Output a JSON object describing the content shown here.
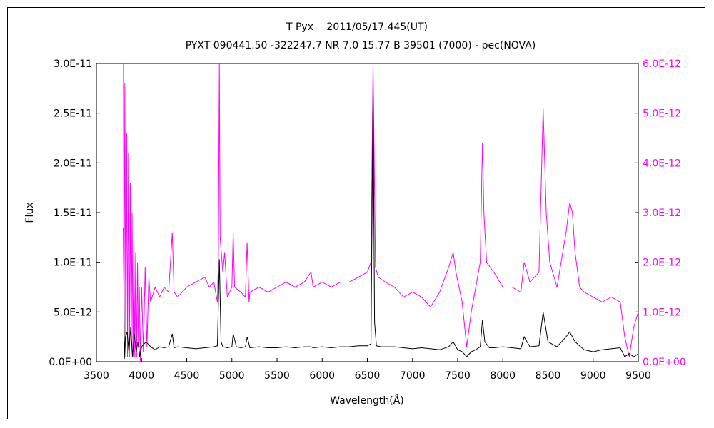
{
  "chart_data": {
    "type": "line",
    "title": "T Pyx　 2011/05/17.445(UT)",
    "subtitle": "PYXT 090441.50 -322247.7 NR 7.0 15.77 B 39501 (7000) - pec(NOVA)",
    "xlabel": "Wavelength(Å)",
    "ylabel": "Flux",
    "xlim": [
      3500,
      9500
    ],
    "ylim_left": [
      0,
      3e-11
    ],
    "ylim_right": [
      0,
      6e-12
    ],
    "x_ticks": [
      "3500",
      "4000",
      "4500",
      "5000",
      "5500",
      "6000",
      "6500",
      "7000",
      "7500",
      "8000",
      "8500",
      "9000",
      "9500"
    ],
    "y_ticks_left": [
      "0.0E+00",
      "5.0E-12",
      "1.0E-11",
      "1.5E-11",
      "2.0E-11",
      "2.5E-11",
      "3.0E-11"
    ],
    "y_ticks_right": [
      "0.0E+00",
      "1.0E-12",
      "2.0E-12",
      "3.0E-12",
      "4.0E-12",
      "5.0E-12",
      "6.0E-12"
    ],
    "grid": false,
    "legend": "none",
    "series": [
      {
        "axis": "left",
        "color": "#000000",
        "x": [
          3800,
          3810,
          3820,
          3840,
          3860,
          3880,
          3900,
          3920,
          3940,
          3960,
          3980,
          4000,
          4050,
          4100,
          4150,
          4200,
          4250,
          4300,
          4340,
          4360,
          4400,
          4500,
          4600,
          4700,
          4800,
          4840,
          4861,
          4880,
          4900,
          4950,
          5000,
          5015,
          5050,
          5100,
          5150,
          5170,
          5200,
          5300,
          5400,
          5500,
          5600,
          5700,
          5800,
          5876,
          5900,
          6000,
          6100,
          6200,
          6300,
          6400,
          6500,
          6540,
          6563,
          6580,
          6600,
          6650,
          6700,
          6800,
          6900,
          7000,
          7100,
          7200,
          7300,
          7400,
          7450,
          7500,
          7550,
          7600,
          7650,
          7700,
          7750,
          7774,
          7800,
          7850,
          7900,
          8000,
          8100,
          8200,
          8236,
          8300,
          8400,
          8446,
          8500,
          8600,
          8700,
          8740,
          8800,
          8900,
          9000,
          9100,
          9200,
          9300,
          9350,
          9400,
          9450,
          9500
        ],
        "y": [
          1.35e-11,
          3e-13,
          2.5e-12,
          3e-12,
          1e-12,
          3.5e-12,
          5e-13,
          2.8e-12,
          1e-12,
          2e-12,
          5e-13,
          1.5e-12,
          2e-12,
          1.5e-12,
          1.2e-12,
          1.5e-12,
          1.4e-12,
          1.5e-12,
          2.8e-12,
          1.4e-12,
          1.5e-12,
          1.4e-12,
          1.3e-12,
          1.4e-12,
          1.5e-12,
          1.6e-12,
          1.03e-11,
          2e-12,
          1.5e-12,
          1.4e-12,
          1.5e-12,
          2.8e-12,
          1.5e-12,
          1.4e-12,
          1.5e-12,
          2.5e-12,
          1.4e-12,
          1.5e-12,
          1.4e-12,
          1.4e-12,
          1.5e-12,
          1.4e-12,
          1.5e-12,
          1.5e-12,
          1.4e-12,
          1.5e-12,
          1.4e-12,
          1.5e-12,
          1.5e-12,
          1.6e-12,
          1.6e-12,
          1.8e-12,
          2.72e-11,
          4e-12,
          1.6e-12,
          1.5e-12,
          1.5e-12,
          1.5e-12,
          1.4e-12,
          1.3e-12,
          1.4e-12,
          1.3e-12,
          1.2e-12,
          1.5e-12,
          2e-12,
          1.2e-12,
          1e-12,
          5e-13,
          1e-12,
          1.2e-12,
          1.5e-12,
          4.2e-12,
          2e-12,
          1.4e-12,
          1.4e-12,
          1.5e-12,
          1.4e-12,
          1.3e-12,
          2.5e-12,
          1.5e-12,
          1.6e-12,
          5e-12,
          2e-12,
          1.5e-12,
          2.5e-12,
          3e-12,
          2e-12,
          1.2e-12,
          1e-12,
          1.2e-12,
          1.3e-12,
          1.4e-12,
          5e-13,
          8e-13,
          5e-13,
          8e-13
        ]
      },
      {
        "axis": "right",
        "color": "#ff00ff",
        "x": [
          3800,
          3805,
          3815,
          3825,
          3835,
          3845,
          3855,
          3865,
          3875,
          3885,
          3895,
          3905,
          3915,
          3925,
          3935,
          3945,
          3955,
          3965,
          3975,
          3985,
          4000,
          4020,
          4040,
          4060,
          4080,
          4100,
          4150,
          4200,
          4250,
          4300,
          4340,
          4360,
          4400,
          4500,
          4600,
          4700,
          4750,
          4800,
          4840,
          4850,
          4861,
          4870,
          4900,
          4920,
          4950,
          5000,
          5015,
          5030,
          5100,
          5150,
          5169,
          5190,
          5200,
          5300,
          5400,
          5500,
          5600,
          5700,
          5800,
          5876,
          5900,
          6000,
          6100,
          6200,
          6300,
          6400,
          6500,
          6540,
          6563,
          6590,
          6620,
          6700,
          6800,
          6900,
          7000,
          7100,
          7200,
          7300,
          7400,
          7450,
          7480,
          7550,
          7600,
          7650,
          7700,
          7750,
          7774,
          7790,
          7820,
          7900,
          8000,
          8100,
          8200,
          8236,
          8300,
          8400,
          8446,
          8480,
          8520,
          8600,
          8700,
          8740,
          8770,
          8800,
          8850,
          8900,
          9000,
          9100,
          9200,
          9300,
          9350,
          9400,
          9450,
          9500
        ],
        "y": [
          6e-12,
          0,
          5.6e-12,
          1e-13,
          4.6e-12,
          1e-13,
          4.2e-12,
          1e-13,
          3.6e-12,
          1e-13,
          3e-12,
          1e-13,
          2.5e-12,
          1e-13,
          2.2e-12,
          1e-13,
          2e-12,
          3e-13,
          1.5e-12,
          0,
          1.5e-12,
          2e-13,
          1.9e-12,
          3e-13,
          1.7e-12,
          1.2e-12,
          1.5e-12,
          1.3e-12,
          1.5e-12,
          1.4e-12,
          2.6e-12,
          1.4e-12,
          1.3e-12,
          1.5e-12,
          1.6e-12,
          1.7e-12,
          1.5e-12,
          1.6e-12,
          1.2e-12,
          2e-12,
          6e-12,
          2.5e-12,
          1.8e-12,
          2.2e-12,
          1.3e-12,
          1.5e-12,
          2.6e-12,
          1.5e-12,
          1.4e-12,
          1.3e-12,
          2.4e-12,
          1.2e-12,
          1.4e-12,
          1.5e-12,
          1.4e-12,
          1.5e-12,
          1.6e-12,
          1.5e-12,
          1.6e-12,
          1.8e-12,
          1.5e-12,
          1.6e-12,
          1.5e-12,
          1.6e-12,
          1.6e-12,
          1.7e-12,
          1.8e-12,
          2e-12,
          6e-12,
          1.9e-12,
          1.7e-12,
          1.6e-12,
          1.5e-12,
          1.3e-12,
          1.4e-12,
          1.3e-12,
          1.1e-12,
          1.4e-12,
          1.9e-12,
          2.2e-12,
          1.8e-12,
          1.2e-12,
          3e-13,
          1e-12,
          1.5e-12,
          2e-12,
          4.4e-12,
          3e-12,
          2e-12,
          1.8e-12,
          1.5e-12,
          1.5e-12,
          1.4e-12,
          2e-12,
          1.6e-12,
          1.8e-12,
          5.1e-12,
          3e-12,
          2e-12,
          1.5e-12,
          2.6e-12,
          3.2e-12,
          3e-12,
          2.2e-12,
          1.5e-12,
          1.4e-12,
          1.3e-12,
          1.2e-12,
          1.3e-12,
          1.2e-12,
          5e-13,
          1e-13,
          7e-13,
          1e-12
        ]
      }
    ]
  }
}
